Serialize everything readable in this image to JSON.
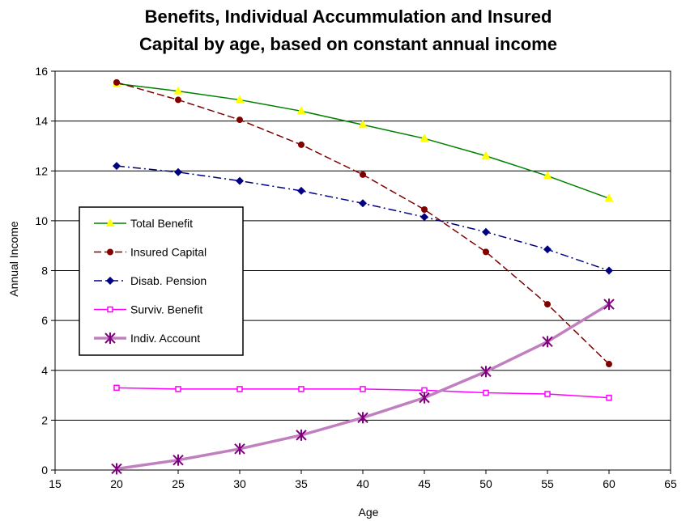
{
  "chart_data": {
    "type": "line",
    "title": [
      "Benefits, Individual Accummulation and Insured",
      "Capital by age, based on constant annual income"
    ],
    "xlabel": "Age",
    "ylabel": "Annual Income",
    "xlim": [
      15,
      65
    ],
    "ylim": [
      0,
      16
    ],
    "xticks": [
      "15",
      "20",
      "25",
      "30",
      "35",
      "40",
      "45",
      "50",
      "55",
      "60",
      "65"
    ],
    "yticks": [
      "0",
      "2",
      "4",
      "6",
      "8",
      "10",
      "12",
      "14",
      "16"
    ],
    "grid": "horizontal",
    "legend_position": "left",
    "x": [
      20,
      25,
      30,
      35,
      40,
      45,
      50,
      55,
      60
    ],
    "series": [
      {
        "name": "Total Benefit",
        "values": [
          15.5,
          15.2,
          14.85,
          14.4,
          13.85,
          13.3,
          12.6,
          11.8,
          10.9
        ],
        "color": "#008000",
        "marker_color": "#ffff00",
        "marker": "triangle",
        "dash": "solid"
      },
      {
        "name": "Insured Capital",
        "values": [
          15.55,
          14.85,
          14.05,
          13.05,
          11.85,
          10.45,
          8.75,
          6.65,
          4.25
        ],
        "color": "#800000",
        "marker_color": "#800000",
        "marker": "circle",
        "dash": "dashed"
      },
      {
        "name": "Disab. Pension",
        "values": [
          12.2,
          11.95,
          11.6,
          11.2,
          10.7,
          10.15,
          9.55,
          8.85,
          8.0
        ],
        "color": "#000080",
        "marker_color": "#000080",
        "marker": "diamond",
        "dash": "dashdot"
      },
      {
        "name": "Surviv. Benefit",
        "values": [
          3.3,
          3.25,
          3.25,
          3.25,
          3.25,
          3.2,
          3.1,
          3.05,
          2.9
        ],
        "color": "#ff00ff",
        "marker_color": "#ff00ff",
        "marker": "square",
        "dash": "solid"
      },
      {
        "name": "Indiv. Account",
        "values": [
          0.05,
          0.4,
          0.85,
          1.4,
          2.1,
          2.9,
          3.95,
          5.15,
          6.65
        ],
        "color": "#c080c0",
        "marker_color": "#800080",
        "marker": "asterisk",
        "dash": "solid"
      }
    ]
  }
}
